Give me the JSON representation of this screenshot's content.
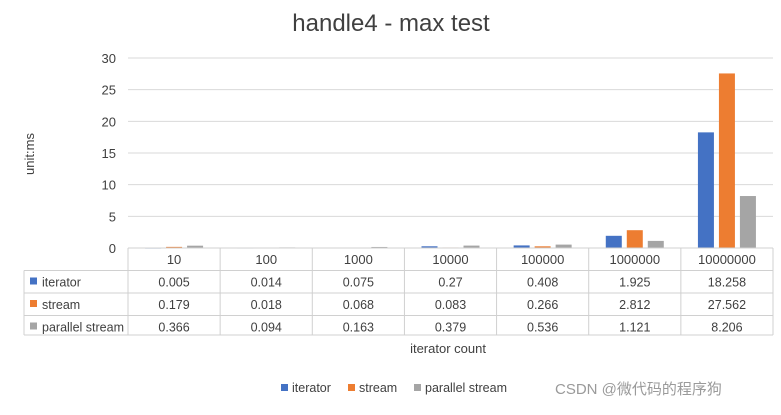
{
  "chart_data": {
    "type": "bar",
    "title": "handle4 - max test",
    "xlabel": "iterator count",
    "ylabel": "unit:ms",
    "ylim": [
      0,
      30
    ],
    "yticks": [
      0,
      5,
      10,
      15,
      20,
      25,
      30
    ],
    "grid": true,
    "legend_position": "bottom",
    "categories": [
      "10",
      "100",
      "1000",
      "10000",
      "100000",
      "1000000",
      "10000000"
    ],
    "series": [
      {
        "name": "iterator",
        "color": "#4472c4",
        "values": [
          0.005,
          0.014,
          0.075,
          0.27,
          0.408,
          1.925,
          18.258
        ],
        "labels": [
          "0.005",
          "0.014",
          "0.075",
          "0.27",
          "0.408",
          "1.925",
          "18.258"
        ]
      },
      {
        "name": "stream",
        "color": "#ed7d31",
        "values": [
          0.179,
          0.018,
          0.068,
          0.083,
          0.266,
          2.812,
          27.562
        ],
        "labels": [
          "0.179",
          "0.018",
          "0.068",
          "0.083",
          "0.266",
          "2.812",
          "27.562"
        ]
      },
      {
        "name": "parallel stream",
        "color": "#a5a5a5",
        "values": [
          0.366,
          0.094,
          0.163,
          0.379,
          0.536,
          1.121,
          8.206
        ],
        "labels": [
          "0.366",
          "0.094",
          "0.163",
          "0.379",
          "0.536",
          "1.121",
          "8.206"
        ]
      }
    ],
    "data_table": true
  },
  "watermark": "CSDN @微代码的程序狗"
}
